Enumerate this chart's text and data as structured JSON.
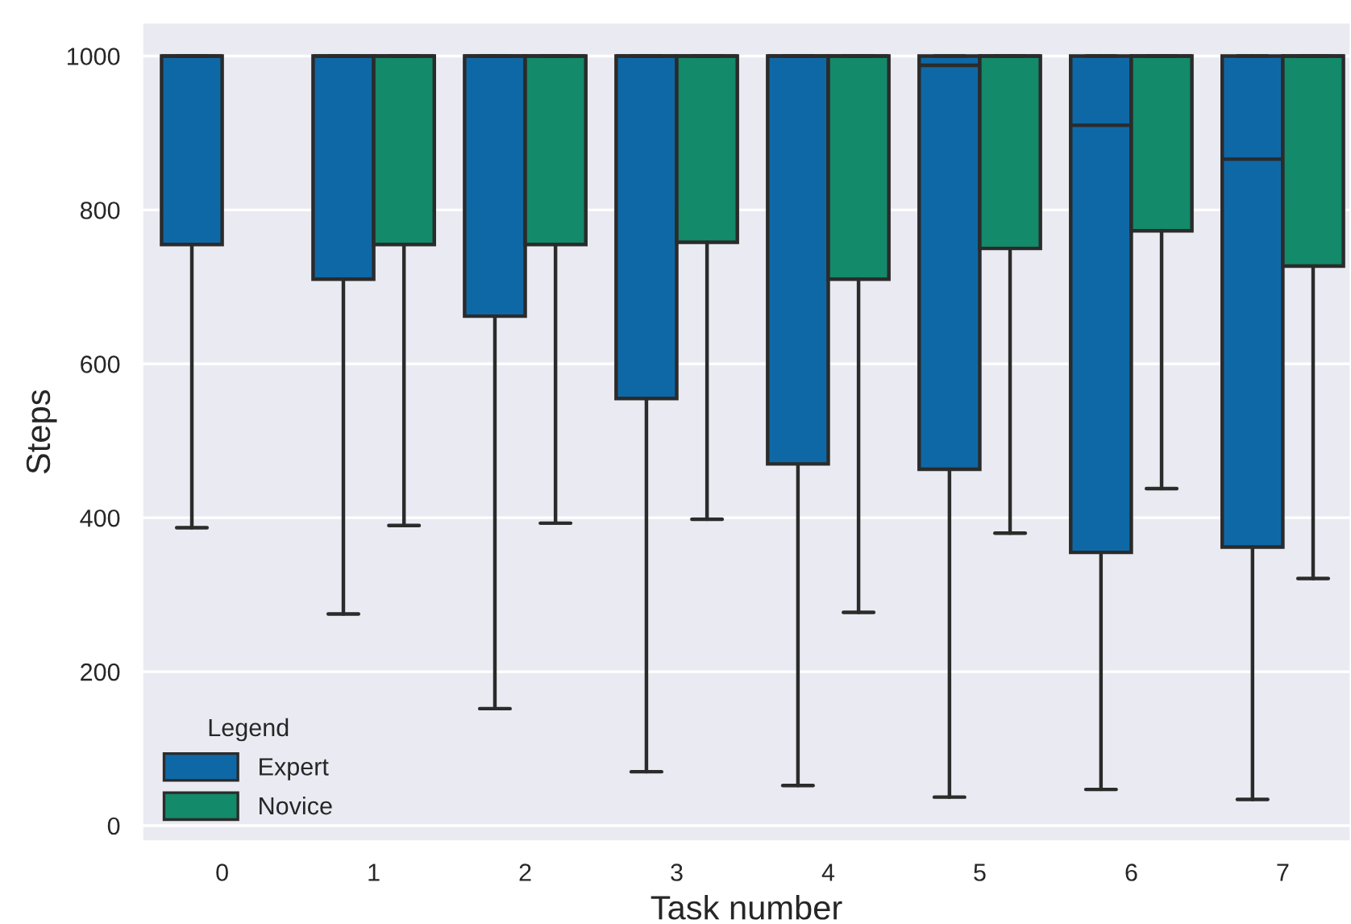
{
  "chart_data": {
    "type": "box",
    "xlabel": "Task number",
    "ylabel": "Steps",
    "legend_title": "Legend",
    "categories": [
      "0",
      "1",
      "2",
      "3",
      "4",
      "5",
      "6",
      "7"
    ],
    "series": [
      {
        "name": "Expert",
        "color": "#0f68a6",
        "boxes": [
          {
            "low": 387,
            "q1": 755,
            "median": 1000,
            "q3": 1000,
            "high": 1000
          },
          {
            "low": 275,
            "q1": 710,
            "median": 1000,
            "q3": 1000,
            "high": 1000
          },
          {
            "low": 152,
            "q1": 662,
            "median": 1000,
            "q3": 1000,
            "high": 1000
          },
          {
            "low": 70,
            "q1": 555,
            "median": 1000,
            "q3": 1000,
            "high": 1000
          },
          {
            "low": 52,
            "q1": 470,
            "median": 1000,
            "q3": 1000,
            "high": 1000
          },
          {
            "low": 37,
            "q1": 463,
            "median": 988,
            "q3": 1000,
            "high": 1000
          },
          {
            "low": 47,
            "q1": 355,
            "median": 910,
            "q3": 1000,
            "high": 1000
          },
          {
            "low": 34,
            "q1": 362,
            "median": 866,
            "q3": 1000,
            "high": 1000
          }
        ]
      },
      {
        "name": "Novice",
        "color": "#138a6a",
        "boxes": [
          null,
          {
            "low": 390,
            "q1": 755,
            "median": 1000,
            "q3": 1000,
            "high": 1000
          },
          {
            "low": 393,
            "q1": 755,
            "median": 1000,
            "q3": 1000,
            "high": 1000
          },
          {
            "low": 398,
            "q1": 758,
            "median": 1000,
            "q3": 1000,
            "high": 1000
          },
          {
            "low": 277,
            "q1": 710,
            "median": 1000,
            "q3": 1000,
            "high": 1000
          },
          {
            "low": 380,
            "q1": 750,
            "median": 1000,
            "q3": 1000,
            "high": 1000
          },
          {
            "low": 438,
            "q1": 773,
            "median": 1000,
            "q3": 1000,
            "high": 1000
          },
          {
            "low": 321,
            "q1": 727,
            "median": 1000,
            "q3": 1000,
            "high": 1000
          }
        ]
      }
    ],
    "ylim": [
      -21,
      1044
    ],
    "yticks": [
      0,
      200,
      400,
      600,
      800,
      1000
    ],
    "grid": "y",
    "legend": "bottom left"
  }
}
